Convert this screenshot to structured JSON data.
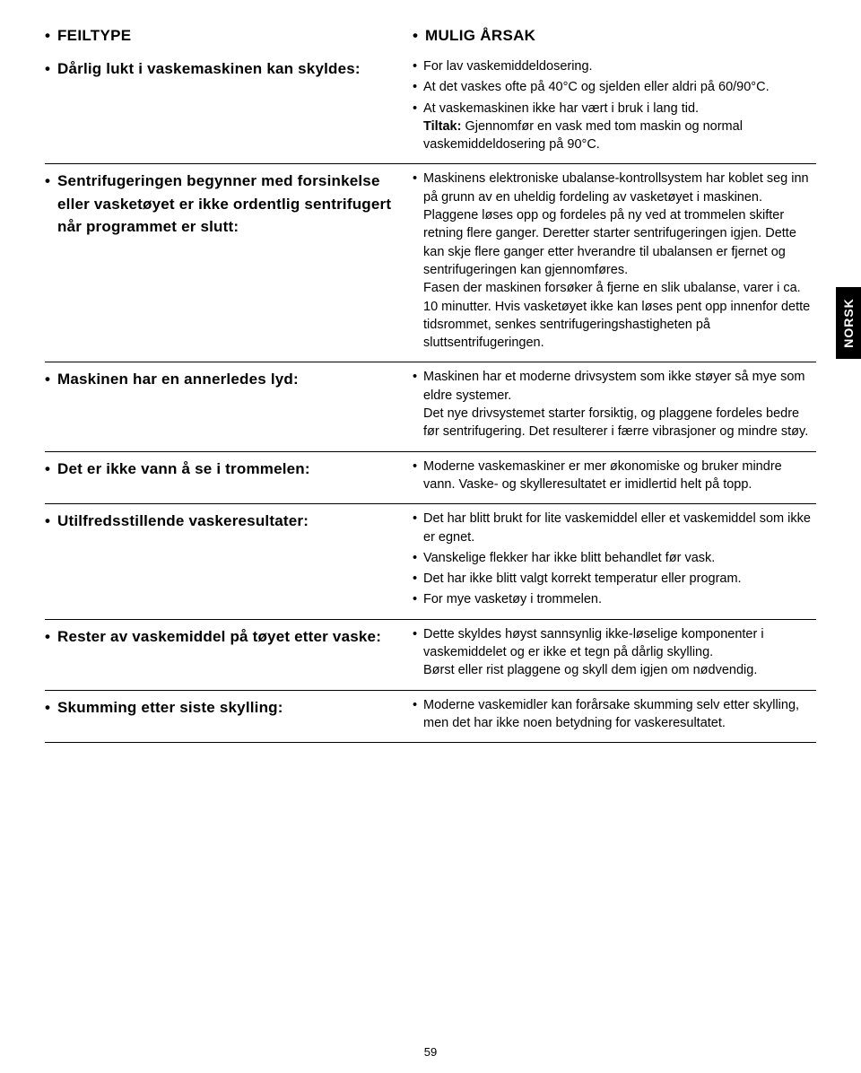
{
  "header": {
    "left": "FEILTYPE",
    "right": "MULIG ÅRSAK"
  },
  "sideTab": "NORSK",
  "pageNumber": "59",
  "rows": [
    {
      "left": "Dårlig lukt i vaskemaskinen kan skyldes:",
      "right": [
        {
          "text": "For lav vaskemiddeldosering."
        },
        {
          "text": "At det vaskes ofte på 40°C og sjelden eller aldri på 60/90°C."
        },
        {
          "text": "At vaskemaskinen ikke har vært i bruk i lang tid.",
          "extra": "Tiltak: Gjennomfør en vask med tom maskin og normal vaskemiddeldosering på 90°C.",
          "extraBoldPrefix": "Tiltak:"
        }
      ]
    },
    {
      "left": "Sentrifugeringen begynner med forsinkelse eller vasketøyet er ikke ordentlig sentrifugert når programmet er slutt:",
      "right": [
        {
          "text": "Maskinens elektroniske ubalanse-kontrollsystem har koblet seg inn på grunn av en uheldig fordeling av vasketøyet i maskinen.",
          "after": "Plaggene løses opp og fordeles på ny ved at trommelen skifter retning flere ganger. Deretter starter sentrifugeringen igjen. Dette kan skje flere ganger etter hverandre til ubalansen er fjernet og sentrifugeringen kan gjennomføres.\nFasen der maskinen forsøker å fjerne en slik ubalanse, varer i ca. 10 minutter. Hvis vasketøyet ikke kan løses pent opp innenfor dette tidsrommet, senkes sentrifugeringshastigheten på sluttsentrifugeringen."
        }
      ]
    },
    {
      "left": "Maskinen har en annerledes lyd:",
      "right": [
        {
          "text": "Maskinen har et moderne drivsystem som ikke støyer så mye som eldre systemer.",
          "after": "Det nye drivsystemet starter forsiktig, og plaggene fordeles bedre før sentrifugering. Det resulterer i færre vibrasjoner og mindre støy."
        }
      ]
    },
    {
      "left": "Det er ikke vann å se i trommelen:",
      "right": [
        {
          "text": "Moderne vaskemaskiner er mer økonomiske og bruker mindre vann. Vaske- og skylleresultatet er imidlertid helt på topp."
        }
      ]
    },
    {
      "left": "Utilfredsstillende vaskeresultater:",
      "right": [
        {
          "text": "Det har blitt brukt for lite vaskemiddel eller et vaskemiddel som ikke er egnet."
        },
        {
          "text": "Vanskelige flekker har ikke blitt behandlet før vask."
        },
        {
          "text": "Det har ikke blitt valgt korrekt temperatur eller program."
        },
        {
          "text": "For mye vasketøy i trommelen."
        }
      ]
    },
    {
      "left": "Rester av vaskemiddel på tøyet etter vaske:",
      "right": [
        {
          "text": "Dette skyldes høyst sannsynlig ikke-løselige komponenter i vaskemiddelet og er ikke et tegn på dårlig skylling.",
          "after": "Børst eller rist plaggene og skyll dem igjen om nødvendig."
        }
      ]
    },
    {
      "left": "Skumming etter siste skylling:",
      "right": [
        {
          "text": "Moderne vaskemidler kan forårsake skumming selv etter skylling, men det har ikke noen betydning for vaskeresultatet."
        }
      ]
    }
  ]
}
